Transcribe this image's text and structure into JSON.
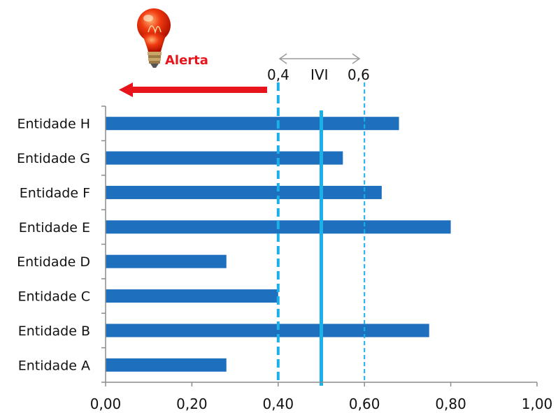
{
  "chart_data": {
    "type": "bar",
    "orientation": "horizontal",
    "categories": [
      "Entidade A",
      "Entidade B",
      "Entidade C",
      "Entidade D",
      "Entidade E",
      "Entidade F",
      "Entidade G",
      "Entidade H"
    ],
    "values": [
      0.28,
      0.75,
      0.4,
      0.28,
      0.8,
      0.64,
      0.55,
      0.68
    ],
    "xlim": [
      0,
      1
    ],
    "xticks": [
      "0,00",
      "0,20",
      "0,40",
      "0,60",
      "0,80",
      "1,00"
    ],
    "grid": false,
    "bar_color": "#1F6FBF",
    "reference_lines": [
      {
        "value": 0.4,
        "style": "dashed",
        "color": "#1AB0EA"
      },
      {
        "value": 0.5,
        "style": "solid",
        "color": "#1AB0EA"
      },
      {
        "value": 0.6,
        "style": "dashed",
        "color": "#1AB0EA"
      }
    ],
    "annotations": {
      "lower_label": "0,4",
      "index_label": "IVI",
      "upper_label": "0,6",
      "alert_label": "Alerta",
      "alert_color": "#E8141B",
      "alert_direction": "left",
      "alert_icon": "light-bulb-icon",
      "range_arrow_color": "#9A9A9A"
    }
  }
}
